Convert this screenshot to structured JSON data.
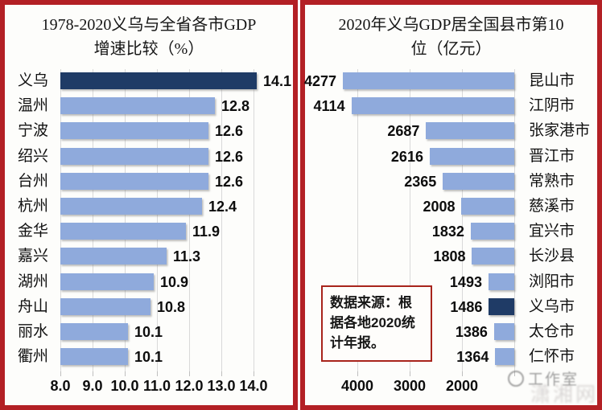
{
  "page": {
    "border_color": "#b32025",
    "background": "#fdfdfb"
  },
  "chart_data": [
    {
      "type": "bar",
      "orientation": "horizontal",
      "title": "1978-2020义乌与全省各市GDP增速比较（%）",
      "title_lines": [
        "1978-2020义乌与全省各市GDP",
        "增速比较（%）"
      ],
      "categories": [
        "义乌",
        "温州",
        "宁波",
        "绍兴",
        "台州",
        "杭州",
        "金华",
        "嘉兴",
        "湖州",
        "舟山",
        "丽水",
        "衢州"
      ],
      "values": [
        14.1,
        12.8,
        12.6,
        12.6,
        12.6,
        12.4,
        11.9,
        11.3,
        10.9,
        10.8,
        10.1,
        10.1
      ],
      "value_labels": [
        "14.1",
        "12.8",
        "12.6",
        "12.6",
        "12.6",
        "12.4",
        "11.9",
        "11.3",
        "10.9",
        "10.8",
        "10.1",
        "10.1"
      ],
      "highlight_category": "义乌",
      "xlim": [
        8.0,
        14.0
      ],
      "x_ticks": [
        "8.0",
        "9.0",
        "10.0",
        "11.0",
        "12.0",
        "13.0",
        "14.0"
      ],
      "x_tick_values": [
        8.0,
        9.0,
        10.0,
        11.0,
        12.0,
        13.0,
        14.0
      ],
      "bar_color": "#8faadc",
      "highlight_color": "#1f3b66",
      "grid": true,
      "legend": false,
      "value_label_position": "right-of-bar",
      "category_label_position": "left"
    },
    {
      "type": "bar",
      "orientation": "horizontal-reversed",
      "title": "2020年义乌GDP居全国县市第10位（亿元）",
      "title_lines": [
        "2020年义乌GDP居全国县市第10",
        "位（亿元）"
      ],
      "categories": [
        "昆山市",
        "江阴市",
        "张家港市",
        "晋江市",
        "常熟市",
        "慈溪市",
        "宜兴市",
        "长沙县",
        "浏阳市",
        "义乌市",
        "太仓市",
        "仁怀市"
      ],
      "values": [
        4277,
        4114,
        2687,
        2616,
        2365,
        2008,
        1832,
        1808,
        1493,
        1486,
        1386,
        1364
      ],
      "value_labels": [
        "4277",
        "4114",
        "2687",
        "2616",
        "2365",
        "2008",
        "1832",
        "1808",
        "1493",
        "1486",
        "1386",
        "1364"
      ],
      "highlight_category": "义乌市",
      "axis_baseline": 1000,
      "xlim": [
        4500,
        1000
      ],
      "x_ticks": [
        "4000",
        "3000",
        "2000"
      ],
      "x_tick_values": [
        4000,
        3000,
        2000
      ],
      "bar_color": "#8faadc",
      "highlight_color": "#1f3b66",
      "grid": true,
      "legend": false,
      "value_label_position": "left-of-bar",
      "category_label_position": "right",
      "source_note": "数据来源：根据各地2020统计年报。"
    }
  ],
  "watermark": {
    "logo": "circle-logo",
    "line1": "工作室",
    "line2": "潇湘网"
  }
}
